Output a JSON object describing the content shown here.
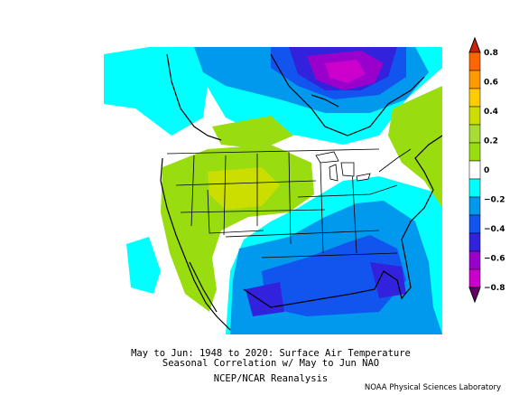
{
  "title_line1": "May to Jun: 1948 to 2020: Surface Air Temperature",
  "title_line2": "Seasonal Correlation w/ May to Jun NAO",
  "source": "NCEP/NCAR Reanalysis",
  "credit": "NOAA Physical Sciences Laboratory",
  "colorbar": {
    "labels": [
      "0.8",
      "0.6",
      "0.4",
      "0.2",
      "0",
      "−0.2",
      "−0.4",
      "−0.6",
      "−0.8"
    ],
    "bins": [
      {
        "range": "0.7 to 0.8",
        "color": "#cc2200"
      },
      {
        "range": "0.6 to 0.7",
        "color": "#ff6600"
      },
      {
        "range": "0.5 to 0.6",
        "color": "#ff9900"
      },
      {
        "range": "0.4 to 0.5",
        "color": "#ffcc00"
      },
      {
        "range": "0.3 to 0.4",
        "color": "#ccdd00"
      },
      {
        "range": "0.2 to 0.3",
        "color": "#aadd33"
      },
      {
        "range": "0.1 to 0.2",
        "color": "#99dd11"
      },
      {
        "range": "-0.1 to 0.1",
        "color": "#ffffff"
      },
      {
        "range": "-0.2 to -0.1",
        "color": "#00ffff"
      },
      {
        "range": "-0.3 to -0.2",
        "color": "#0099ee"
      },
      {
        "range": "-0.4 to -0.3",
        "color": "#1155ee"
      },
      {
        "range": "-0.5 to -0.4",
        "color": "#3322dd"
      },
      {
        "range": "-0.6 to -0.5",
        "color": "#9900cc"
      },
      {
        "range": "-0.7 to -0.6",
        "color": "#cc00cc"
      },
      {
        "range": "-0.8 to -0.7",
        "color": "#660066"
      }
    ]
  }
}
